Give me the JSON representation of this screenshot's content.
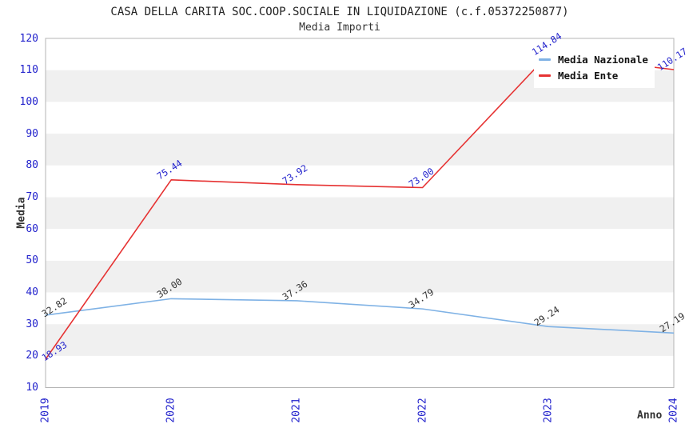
{
  "header": {
    "title": "CASA DELLA CARITA SOC.COOP.SOCIALE IN LIQUIDAZIONE (c.f.05372250877)",
    "subtitle": "Media Importi"
  },
  "axes": {
    "y_title": "Media",
    "x_title": "Anno",
    "yticks": [
      10,
      20,
      30,
      40,
      50,
      60,
      70,
      80,
      90,
      100,
      110,
      120
    ]
  },
  "chart_data": {
    "type": "line",
    "title": "CASA DELLA CARITA SOC.COOP.SOCIALE IN LIQUIDAZIONE (c.f.05372250877)",
    "subtitle": "Media Importi",
    "xlabel": "Anno",
    "ylabel": "Media",
    "categories": [
      "2019",
      "2020",
      "2021",
      "2022",
      "2023",
      "2024"
    ],
    "series": [
      {
        "name": "Media Nazionale",
        "color": "#7fb2e5",
        "label_color": "#333333",
        "values": [
          32.82,
          38.0,
          37.36,
          34.79,
          29.24,
          27.19
        ],
        "labels": [
          "32.82",
          "38.00",
          "37.36",
          "34.79",
          "29.24",
          "27.19"
        ]
      },
      {
        "name": "Media Ente",
        "color": "#e63232",
        "label_color": "#2222cc",
        "values": [
          18.93,
          75.44,
          73.92,
          73.0,
          114.84,
          110.17
        ],
        "labels": [
          "18.93",
          "75.44",
          "73.92",
          "73.00",
          "114.84",
          "110.17"
        ]
      }
    ],
    "ylim": [
      10,
      120
    ],
    "ytick_step": 10,
    "grid": "horizontal-alternating-bands",
    "legend_position": "top-right"
  },
  "colors": {
    "tick_label": "#2222cc",
    "band_gray": "#f0f0f0",
    "plot_border": "#b4b4b4",
    "title_text": "#222222"
  }
}
